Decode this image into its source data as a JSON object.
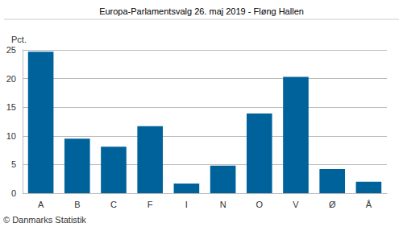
{
  "chart_data": {
    "type": "bar",
    "title": "Europa-Parlamentsvalg 26. maj 2019 - Fløng Hallen",
    "y_label": "Pct.",
    "annotations": [
      "© Danmarks Statistik"
    ],
    "categories": [
      "A",
      "B",
      "C",
      "F",
      "I",
      "N",
      "O",
      "V",
      "Ø",
      "Å"
    ],
    "values": [
      24.7,
      9.5,
      8.1,
      11.7,
      1.7,
      4.8,
      13.9,
      20.3,
      4.2,
      2.0
    ],
    "color": "#00629b",
    "ylim": [
      0,
      25
    ],
    "yticks": [
      0,
      5,
      10,
      15,
      20,
      25
    ],
    "grid": true
  }
}
